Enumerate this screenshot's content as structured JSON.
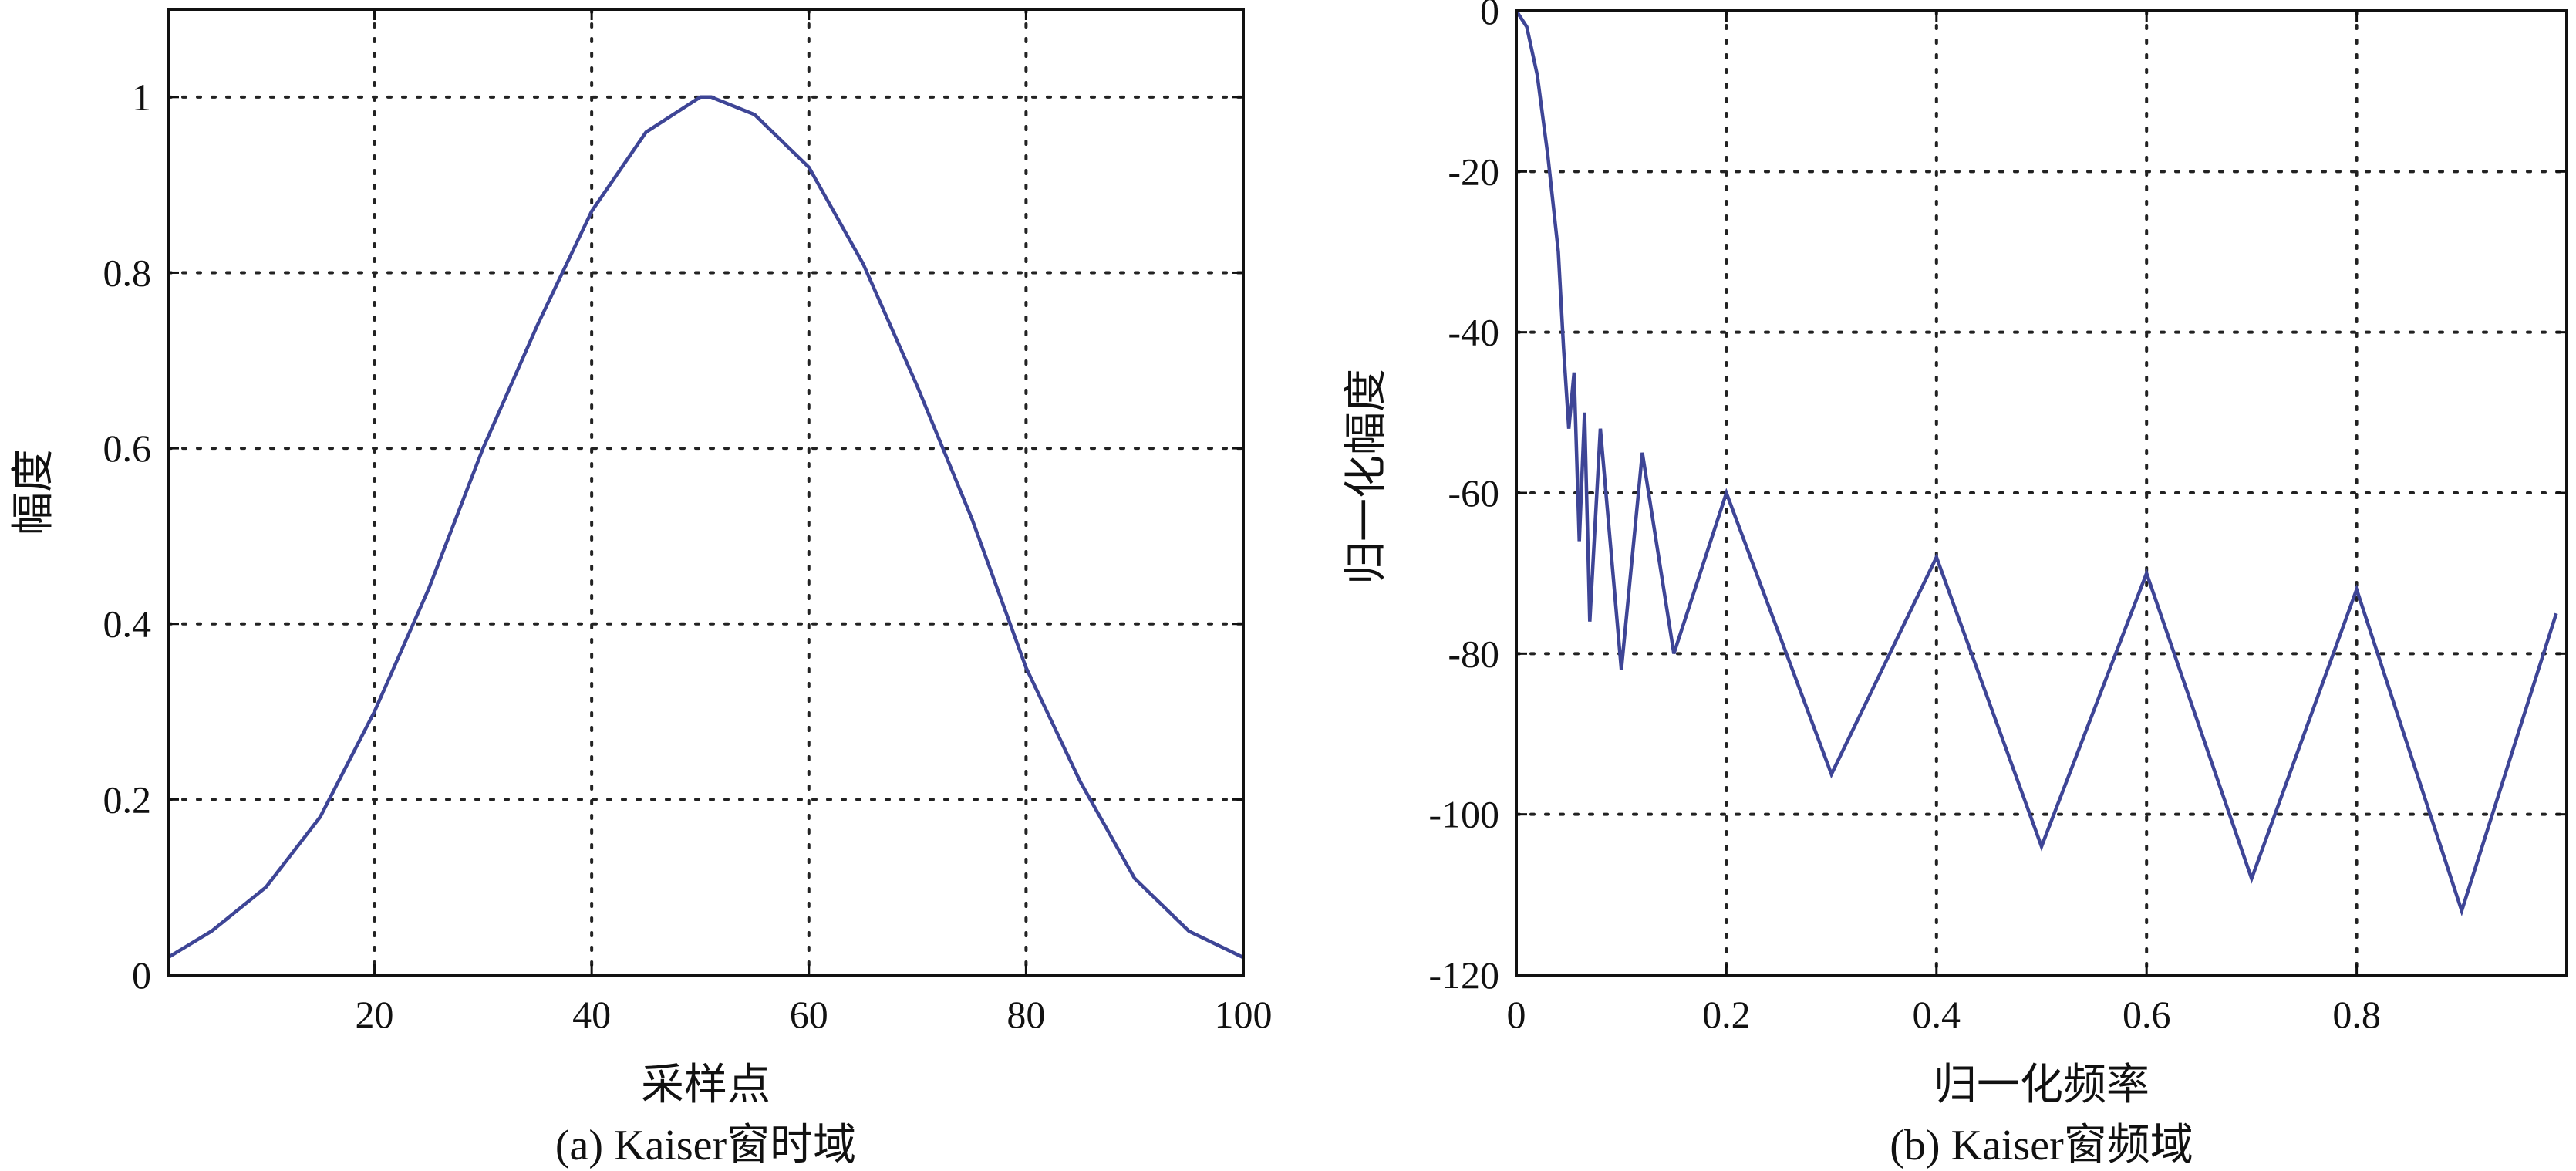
{
  "chart_data": [
    {
      "type": "line",
      "caption": "(a) Kaiser窗时域",
      "xlabel": "采样点",
      "ylabel": "幅度",
      "xlim": [
        1,
        100
      ],
      "ylim": [
        0,
        1.1
      ],
      "xticks": [
        20,
        40,
        60,
        80,
        100
      ],
      "xtick_labels": [
        "20",
        "40",
        "60",
        "80",
        "100"
      ],
      "yticks": [
        0,
        0.2,
        0.4,
        0.6,
        0.8,
        1
      ],
      "ytick_labels": [
        "0",
        "0.2",
        "0.4",
        "0.6",
        "0.8",
        "1"
      ],
      "grid": true,
      "color": "#3e4596",
      "series": [
        {
          "x": [
            1,
            5,
            10,
            15,
            20,
            25,
            30,
            35,
            40,
            45,
            50,
            51,
            55,
            60,
            65,
            70,
            75,
            80,
            85,
            90,
            95,
            100
          ],
          "values": [
            0.02,
            0.05,
            0.1,
            0.18,
            0.3,
            0.44,
            0.6,
            0.74,
            0.87,
            0.96,
            1.0,
            1.0,
            0.98,
            0.92,
            0.81,
            0.67,
            0.52,
            0.35,
            0.22,
            0.11,
            0.05,
            0.02
          ]
        }
      ]
    },
    {
      "type": "line",
      "caption": "(b) Kaiser窗频域",
      "xlabel": "归一化频率",
      "ylabel": "归一化幅度",
      "xlim": [
        0,
        1
      ],
      "ylim": [
        -120,
        0
      ],
      "xticks": [
        0,
        0.2,
        0.4,
        0.6,
        0.8
      ],
      "xtick_labels": [
        "0",
        "0.2",
        "0.4",
        "0.6",
        "0.8"
      ],
      "yticks": [
        0,
        -20,
        -40,
        -60,
        -80,
        -100,
        -120
      ],
      "ytick_labels": [
        "0",
        "-20",
        "-40",
        "-60",
        "-80",
        "-100",
        "-120"
      ],
      "grid": true,
      "color": "#3e4596",
      "series": [
        {
          "x": [
            0.0,
            0.01,
            0.02,
            0.03,
            0.04,
            0.045,
            0.05,
            0.055,
            0.06,
            0.065,
            0.07,
            0.08,
            0.1,
            0.12,
            0.15,
            0.2,
            0.3,
            0.4,
            0.5,
            0.6,
            0.7,
            0.8,
            0.9,
            0.99
          ],
          "values": [
            0,
            -2,
            -8,
            -18,
            -30,
            -42,
            -52,
            -45,
            -66,
            -50,
            -76,
            -52,
            -82,
            -55,
            -80,
            -60,
            -95,
            -68,
            -104,
            -70,
            -108,
            -72,
            -112,
            -75
          ]
        }
      ]
    }
  ]
}
